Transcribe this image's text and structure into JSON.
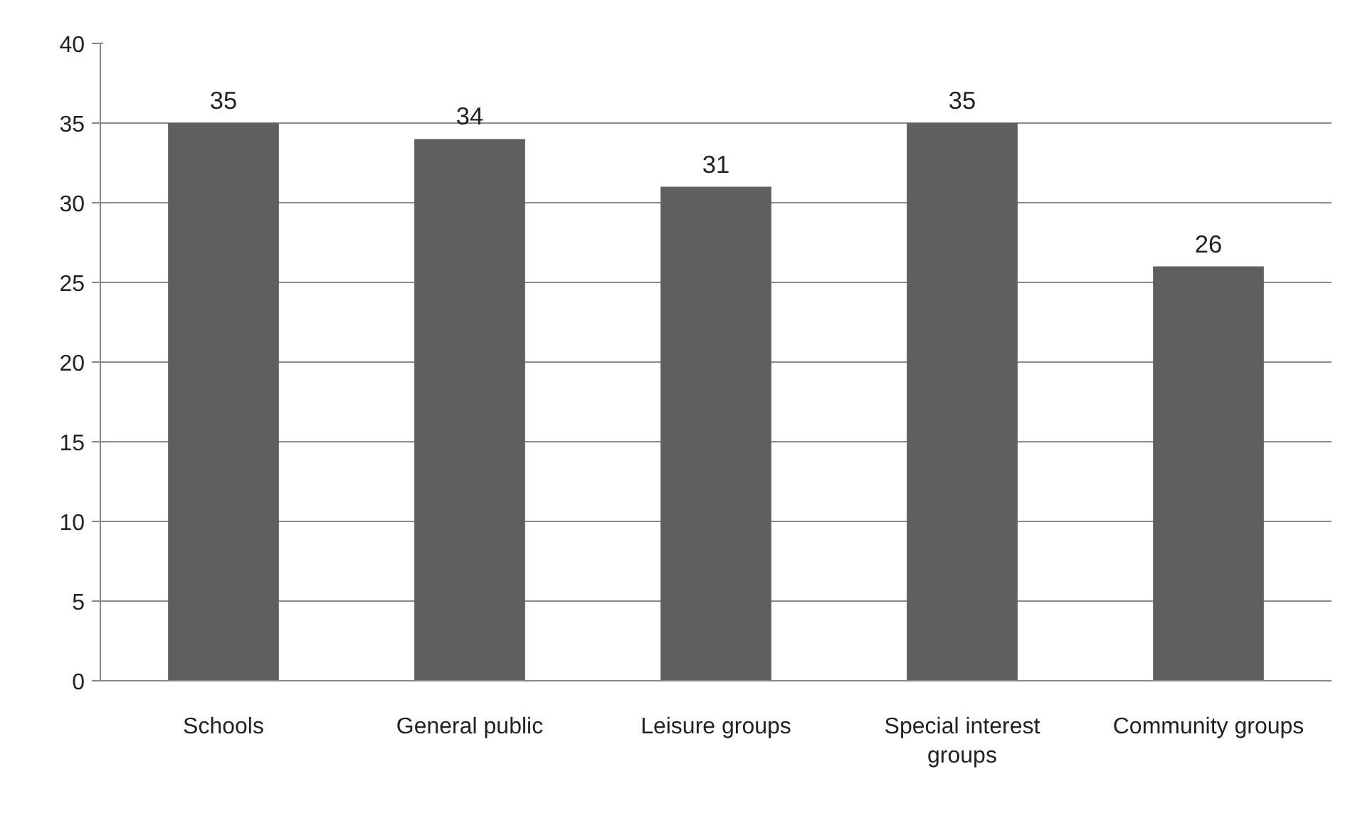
{
  "chart_data": {
    "type": "bar",
    "categories": [
      "Schools",
      "General public",
      "Leisure groups",
      "Special interest groups",
      "Community groups"
    ],
    "values": [
      35,
      34,
      31,
      35,
      26
    ],
    "color": "#5f5f5f",
    "ylim": [
      0,
      40
    ],
    "yticks": [
      0,
      5,
      10,
      15,
      20,
      25,
      30,
      35,
      40
    ],
    "grid": "y",
    "data_labels": true
  }
}
